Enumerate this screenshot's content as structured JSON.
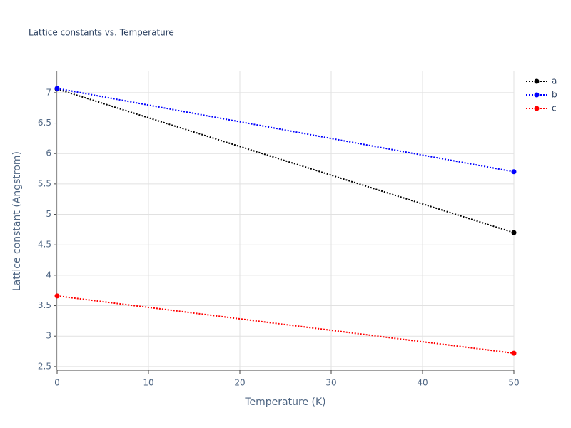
{
  "chart_data": {
    "type": "line",
    "title": "Lattice constants vs. Temperature",
    "x_label": "Temperature (K)",
    "y_label": "Lattice constant (Angstrom)",
    "x": [
      0,
      50
    ],
    "series": [
      {
        "name": "a",
        "color": "#000000",
        "values": [
          7.06,
          4.7
        ]
      },
      {
        "name": "b",
        "color": "#0000ff",
        "values": [
          7.07,
          5.7
        ]
      },
      {
        "name": "c",
        "color": "#ff0000",
        "values": [
          3.66,
          2.72
        ]
      }
    ],
    "xlim": [
      0,
      50
    ],
    "xticks": [
      0,
      10,
      20,
      30,
      40,
      50
    ],
    "ylim": [
      2.44,
      7.35
    ],
    "yticks": [
      2.5,
      3,
      3.5,
      4,
      4.5,
      5,
      5.5,
      6,
      6.5,
      7
    ],
    "grid": true,
    "legend": "top-right",
    "line_style": "dotted"
  }
}
